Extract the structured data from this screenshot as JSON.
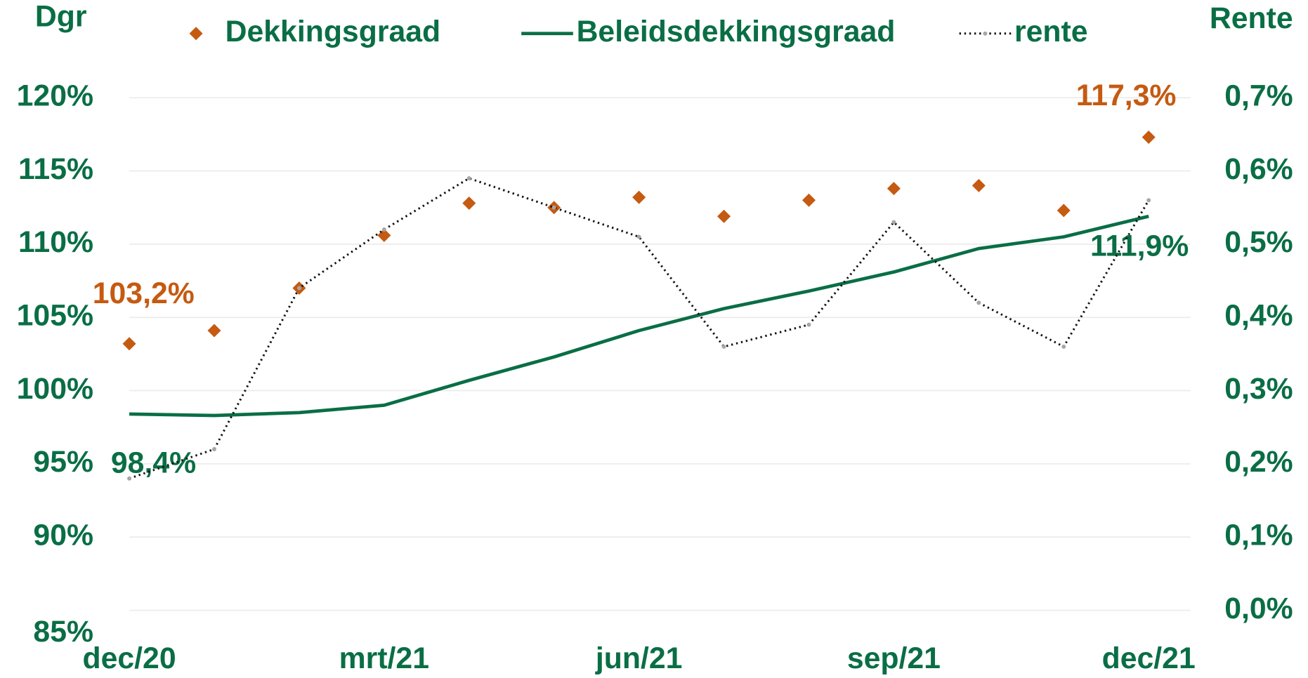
{
  "chart_data": {
    "type": "line",
    "y_title": "Dgr",
    "y2_title": "Rente",
    "categories": [
      "dec/20",
      null,
      null,
      "mrt/21",
      null,
      null,
      "jun/21",
      null,
      null,
      "sep/21",
      null,
      null,
      "dec/21"
    ],
    "series": [
      {
        "name": "Dekkingsgraad",
        "style": "marker",
        "color": "#c55a11",
        "values": [
          103.2,
          104.1,
          107.0,
          110.6,
          112.8,
          112.5,
          113.2,
          111.9,
          113.0,
          113.8,
          114.0,
          112.3,
          117.3
        ],
        "value_labels": [
          "103,2%",
          null,
          null,
          null,
          null,
          null,
          null,
          null,
          null,
          null,
          null,
          null,
          "117,3%"
        ]
      },
      {
        "name": "Beleidsdekkingsgraad",
        "style": "solid",
        "color": "#0a6e45",
        "values": [
          98.4,
          98.3,
          98.5,
          99.0,
          100.7,
          102.3,
          104.1,
          105.6,
          106.8,
          108.1,
          109.7,
          110.5,
          111.9
        ],
        "value_labels": [
          "98,4%",
          null,
          null,
          null,
          null,
          null,
          null,
          null,
          null,
          null,
          null,
          null,
          "111,9%"
        ]
      },
      {
        "name": "rente",
        "style": "dotted",
        "color": "#111111",
        "axis": "y2",
        "values": [
          0.18,
          0.22,
          0.44,
          0.52,
          0.59,
          0.55,
          0.51,
          0.36,
          0.39,
          0.53,
          0.42,
          0.36,
          0.56
        ]
      }
    ],
    "ylim": [
      85,
      120
    ],
    "yticks": [
      {
        "value": 85,
        "label": "85%"
      },
      {
        "value": 90,
        "label": "90%"
      },
      {
        "value": 95,
        "label": "95%"
      },
      {
        "value": 100,
        "label": "100%"
      },
      {
        "value": 105,
        "label": "105%"
      },
      {
        "value": 110,
        "label": "110%"
      },
      {
        "value": 115,
        "label": "115%"
      },
      {
        "value": 120,
        "label": "120%"
      }
    ],
    "y2lim": [
      0,
      0.7
    ],
    "y2ticks": [
      {
        "value": 0,
        "label": "0,0%"
      },
      {
        "value": 0.1,
        "label": "0,1%"
      },
      {
        "value": 0.2,
        "label": "0,2%"
      },
      {
        "value": 0.3,
        "label": "0,3%"
      },
      {
        "value": 0.4,
        "label": "0,4%"
      },
      {
        "value": 0.5,
        "label": "0,5%"
      },
      {
        "value": 0.6,
        "label": "0,6%"
      },
      {
        "value": 0.7,
        "label": "0,7%"
      }
    ],
    "grid": true
  }
}
